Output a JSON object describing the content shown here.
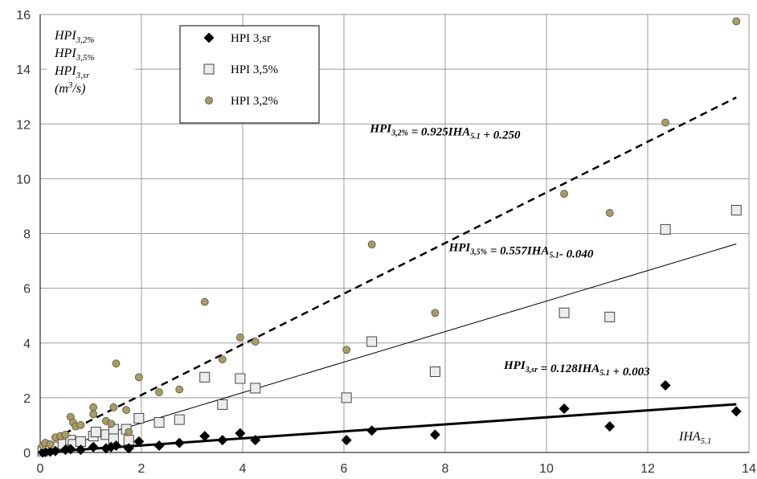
{
  "chart_data": {
    "type": "scatter",
    "xlim": [
      0,
      14
    ],
    "ylim": [
      0,
      16
    ],
    "x_ticks": [
      0,
      2,
      4,
      6,
      8,
      10,
      12,
      14
    ],
    "y_ticks": [
      0,
      2,
      4,
      6,
      8,
      10,
      12,
      14,
      16
    ],
    "grid": true,
    "legend_position": "top-left",
    "y_label_lines": [
      {
        "main": "HPI",
        "sub": "3,2%"
      },
      {
        "main": "HPI",
        "sub": "3,5%"
      },
      {
        "main": "HPI",
        "sub": "3,sr"
      },
      {
        "pre": "(m",
        "sup": "3",
        "post": "/s)"
      }
    ],
    "x_label": {
      "main": "IHA",
      "sub": "5.1"
    },
    "series": [
      {
        "name": "HPI 3,sr",
        "marker": "diamond",
        "color": "#000000",
        "points": [
          [
            0.05,
            0.0
          ],
          [
            0.1,
            0.02
          ],
          [
            0.2,
            0.03
          ],
          [
            0.3,
            0.05
          ],
          [
            0.5,
            0.1
          ],
          [
            0.6,
            0.12
          ],
          [
            0.8,
            0.1
          ],
          [
            1.05,
            0.2
          ],
          [
            1.3,
            0.15
          ],
          [
            1.4,
            0.2
          ],
          [
            1.5,
            0.25
          ],
          [
            1.75,
            0.15
          ],
          [
            1.95,
            0.4
          ],
          [
            2.35,
            0.25
          ],
          [
            2.75,
            0.35
          ],
          [
            3.25,
            0.6
          ],
          [
            3.6,
            0.45
          ],
          [
            3.95,
            0.7
          ],
          [
            4.25,
            0.45
          ],
          [
            6.05,
            0.45
          ],
          [
            6.55,
            0.8
          ],
          [
            7.8,
            0.65
          ],
          [
            10.35,
            1.6
          ],
          [
            11.25,
            0.95
          ],
          [
            12.35,
            2.45
          ],
          [
            13.75,
            1.5
          ]
        ],
        "fit": {
          "slope": 0.128,
          "intercept": 0.003,
          "style": "solid-thick"
        }
      },
      {
        "name": "HPI 3,5%",
        "marker": "square",
        "color": "#ececec",
        "points": [
          [
            0.05,
            0.05
          ],
          [
            0.15,
            0.15
          ],
          [
            0.3,
            0.2
          ],
          [
            0.45,
            0.3
          ],
          [
            0.6,
            0.45
          ],
          [
            0.65,
            0.3
          ],
          [
            0.8,
            0.4
          ],
          [
            1.05,
            0.6
          ],
          [
            1.1,
            0.75
          ],
          [
            1.3,
            0.65
          ],
          [
            1.45,
            0.85
          ],
          [
            1.45,
            0.5
          ],
          [
            1.7,
            0.85
          ],
          [
            1.75,
            0.45
          ],
          [
            1.95,
            1.25
          ],
          [
            2.35,
            1.1
          ],
          [
            2.75,
            1.2
          ],
          [
            3.25,
            2.75
          ],
          [
            3.6,
            1.75
          ],
          [
            3.95,
            2.7
          ],
          [
            4.25,
            2.35
          ],
          [
            6.05,
            2.0
          ],
          [
            6.55,
            4.05
          ],
          [
            7.8,
            2.95
          ],
          [
            10.35,
            5.1
          ],
          [
            11.25,
            4.95
          ],
          [
            12.35,
            8.15
          ],
          [
            13.75,
            8.85
          ]
        ],
        "fit": {
          "slope": 0.557,
          "intercept": -0.04,
          "style": "solid-thin"
        }
      },
      {
        "name": "HPI 3,2%",
        "marker": "circle",
        "color": "#a89b68",
        "points": [
          [
            0.05,
            0.25
          ],
          [
            0.1,
            0.35
          ],
          [
            0.2,
            0.3
          ],
          [
            0.3,
            0.55
          ],
          [
            0.4,
            0.6
          ],
          [
            0.5,
            0.65
          ],
          [
            0.6,
            1.3
          ],
          [
            0.65,
            1.1
          ],
          [
            0.7,
            0.95
          ],
          [
            0.8,
            1.0
          ],
          [
            1.05,
            1.65
          ],
          [
            1.05,
            1.4
          ],
          [
            1.3,
            1.15
          ],
          [
            1.4,
            1.05
          ],
          [
            1.45,
            1.65
          ],
          [
            1.5,
            3.25
          ],
          [
            1.7,
            1.55
          ],
          [
            1.75,
            0.75
          ],
          [
            1.95,
            2.75
          ],
          [
            2.35,
            2.2
          ],
          [
            2.75,
            2.3
          ],
          [
            3.25,
            5.5
          ],
          [
            3.6,
            3.4
          ],
          [
            3.95,
            4.2
          ],
          [
            4.25,
            4.05
          ],
          [
            6.05,
            3.75
          ],
          [
            6.55,
            7.6
          ],
          [
            7.8,
            5.1
          ],
          [
            10.35,
            9.45
          ],
          [
            11.25,
            8.75
          ],
          [
            12.35,
            12.05
          ],
          [
            13.75,
            15.75
          ]
        ],
        "fit": {
          "slope": 0.925,
          "intercept": 0.25,
          "style": "dashed"
        }
      }
    ],
    "equations": [
      {
        "parts": [
          {
            "t": "HPI"
          },
          {
            "t": "3,2%",
            "sub": true
          },
          {
            "t": " = 0.925IHA"
          },
          {
            "t": "5.1",
            "sub": true
          },
          {
            "t": " + 0.250"
          }
        ],
        "at": [
          8.0,
          11.7
        ]
      },
      {
        "parts": [
          {
            "t": "HPI"
          },
          {
            "t": "3,5%",
            "sub": true
          },
          {
            "t": " = 0.557IHA"
          },
          {
            "t": "5.1",
            "sub": true
          },
          {
            "t": "- 0.040"
          }
        ],
        "at": [
          9.5,
          7.35
        ]
      },
      {
        "parts": [
          {
            "t": "HPI"
          },
          {
            "t": "3,sr",
            "sub": true
          },
          {
            "t": " = 0.128IHA"
          },
          {
            "t": "5.1",
            "sub": true
          },
          {
            "t": " + 0.003"
          }
        ],
        "at": [
          10.6,
          3.05
        ]
      }
    ]
  }
}
